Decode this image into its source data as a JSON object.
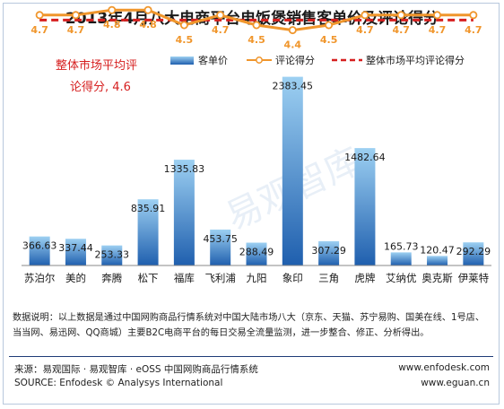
{
  "title": "2013年4月八大电商平台电饭煲销售客单价及评论得分",
  "watermark": "易观智库",
  "legend": {
    "bar_label": "客单价",
    "line_label": "评论得分",
    "avg_label": "整体市场平均评论得分"
  },
  "market_note": {
    "line1": "整体市场平均评",
    "line2": "论得分, 4.6"
  },
  "note": "数据说明：以上数据是通过中国网购商品行情系统对中国大陆市场八大（京东、天猫、苏宁易购、国美在线、1号店、当当网、易迅网、QQ商城）主要B2C电商平台的每日交易全流量监测，进一步整合、修正、分析得出。",
  "source": {
    "cn": "来源：易观国际 · 易观智库 · eOSS 中国网购商品行情系统",
    "en": "SOURCE: Enfodesk © Analysys International",
    "url1": "www.enfodesk.com",
    "url2": "www.eguan.cn"
  },
  "colors": {
    "bar_top": "#9dd0f2",
    "bar_bottom": "#1f5fae",
    "line": "#f0962c",
    "avg": "#d61f1f",
    "score_text": "#f0962c",
    "market_note": "#d62020"
  },
  "chart_data": {
    "type": "bar",
    "categories": [
      "苏泊尔",
      "美的",
      "奔腾",
      "松下",
      "福库",
      "飞利浦",
      "九阳",
      "象印",
      "三角",
      "虎牌",
      "艾纳优",
      "奥克斯",
      "伊莱特"
    ],
    "series": [
      {
        "name": "客单价",
        "type": "bar",
        "values": [
          366.63,
          337.44,
          253.33,
          835.91,
          1335.83,
          453.75,
          288.49,
          2383.45,
          307.29,
          1482.64,
          165.73,
          120.47,
          292.29
        ],
        "labels": [
          "366.63",
          "337.44",
          "253.33",
          "835.91",
          "1335.83",
          "453.75",
          "288.49",
          "2383.45",
          "307.29",
          "1482.64",
          "165.73",
          "120.47",
          "292.29"
        ]
      },
      {
        "name": "评论得分",
        "type": "line",
        "values": [
          4.7,
          4.7,
          4.8,
          4.8,
          4.5,
          4.7,
          4.5,
          4.4,
          4.5,
          4.7,
          4.7,
          4.7,
          4.7
        ],
        "labels": [
          "4.7",
          "4.7",
          "4.8",
          "4.8",
          "4.5",
          "4.7",
          "4.5",
          "4.4",
          "4.5",
          "4.7",
          "4.7",
          "4.7",
          "4.7"
        ]
      },
      {
        "name": "整体市场平均评论得分",
        "type": "line",
        "dashed": true,
        "values": [
          4.6,
          4.6,
          4.6,
          4.6,
          4.6,
          4.6,
          4.6,
          4.6,
          4.6,
          4.6,
          4.6,
          4.6,
          4.6
        ]
      }
    ],
    "ylim": [
      0,
      2900
    ],
    "y2lim": [
      0,
      5
    ],
    "grid": false,
    "legend_position": "top"
  }
}
